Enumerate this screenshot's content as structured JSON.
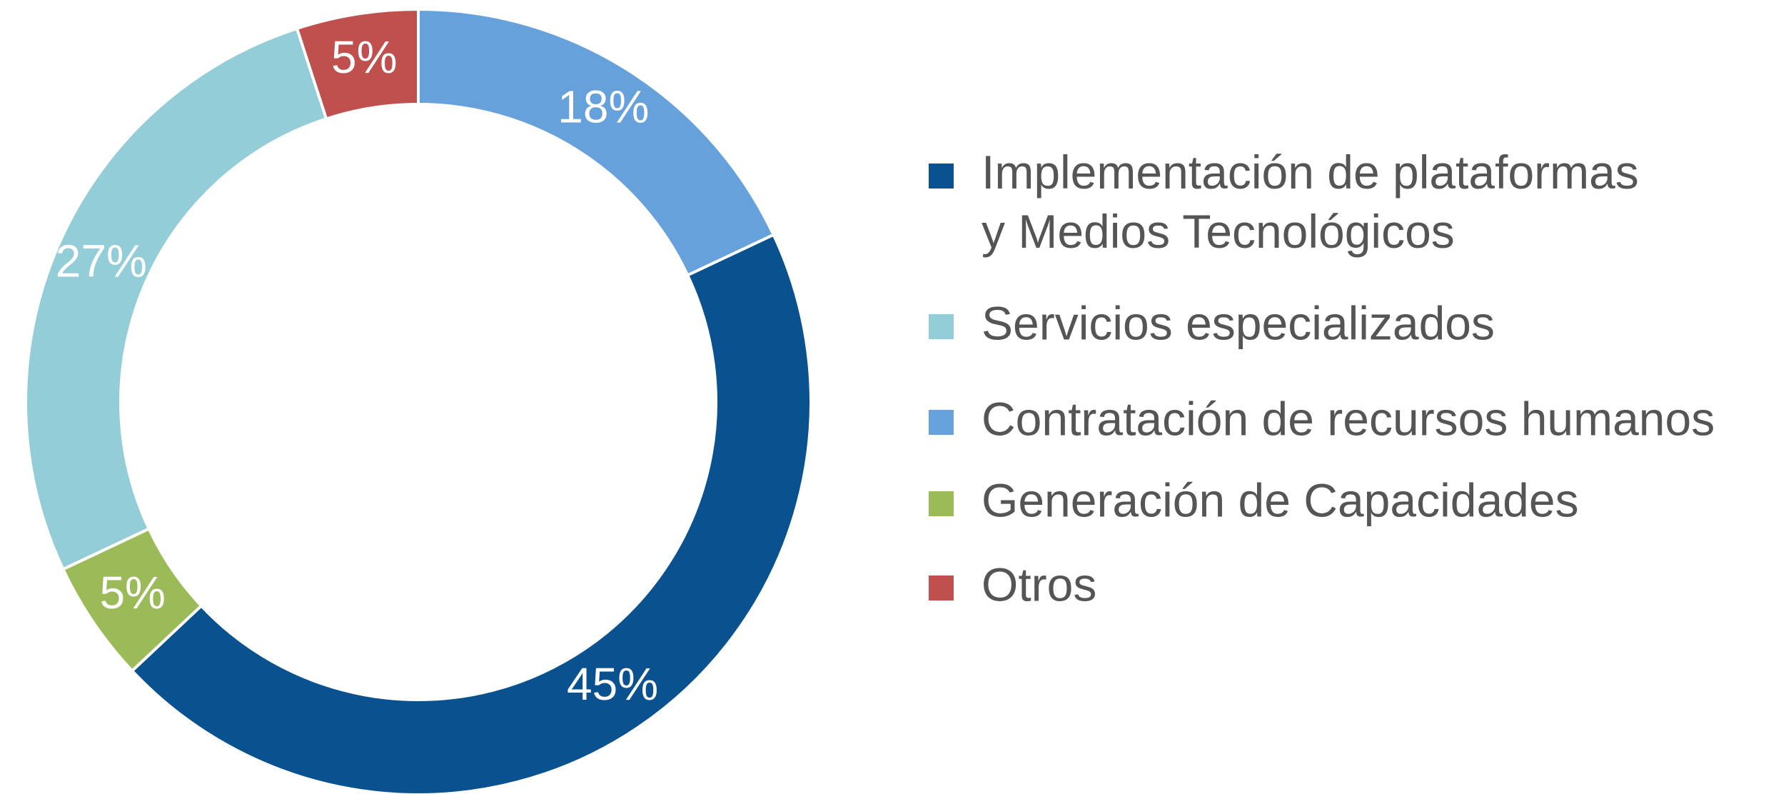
{
  "chart_data": {
    "type": "donut",
    "categories": [
      "Implementación de plataformas\ny Medios Tecnológicos",
      "Servicios especializados",
      "Contratación de recursos humanos",
      "Generación de Capacidades",
      "Otros"
    ],
    "values": [
      45,
      27,
      18,
      5,
      5
    ],
    "value_labels": [
      "45%",
      "27%",
      "18%",
      "5%",
      "5%"
    ],
    "colors": [
      "#0a5190",
      "#93cdd7",
      "#67a1dc",
      "#9bbb59",
      "#c0504d"
    ],
    "legend": "right"
  }
}
